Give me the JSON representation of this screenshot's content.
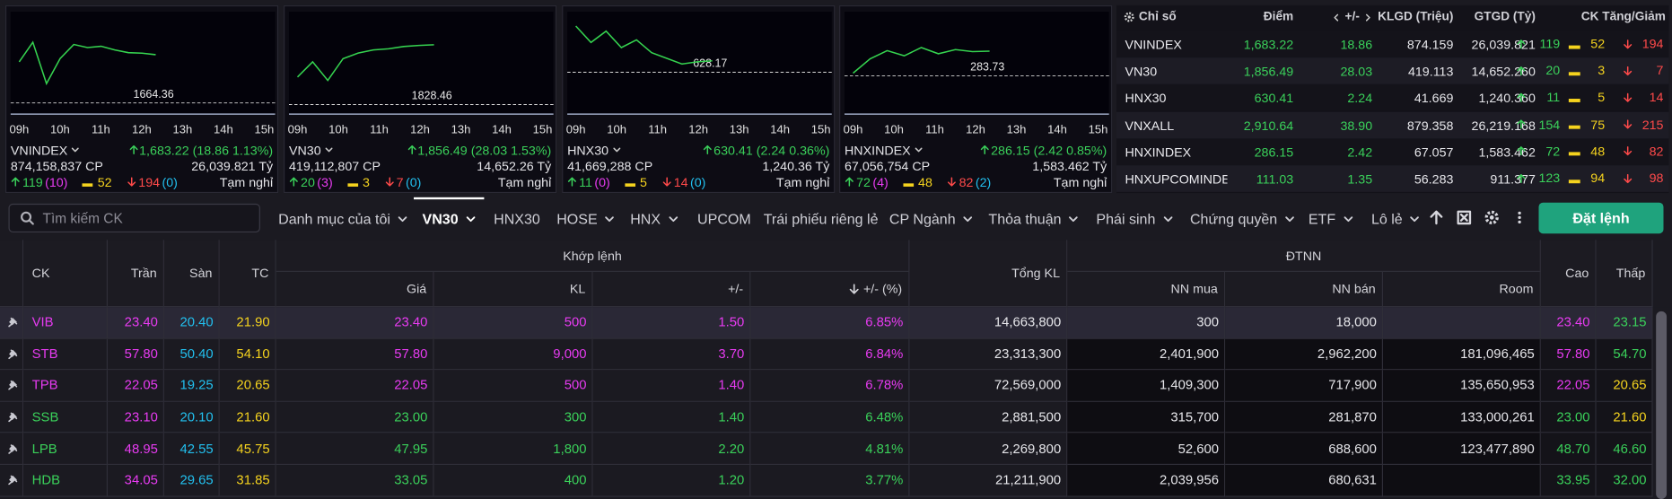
{
  "index_cards": [
    {
      "name": "VNINDEX",
      "change": "1,683.22 (18.86 1.13%)",
      "volume": "874,158,837 CP",
      "value": "26,039.821 Tỷ",
      "advances": "119",
      "ceiling": "(10)",
      "unchanged": "52",
      "declines": "194",
      "floor": "(0)",
      "status": "Tạm nghỉ",
      "chart": {
        "ylim": [
          1660,
          1700
        ],
        "reference": 1664.36,
        "xticks": [
          "09h",
          "10h",
          "11h",
          "12h",
          "13h",
          "14h",
          "15h"
        ],
        "values": [
          1680.4,
          1688.1,
          1671.9,
          1681.7,
          1687.2,
          1686.0,
          1686.5,
          1685.1,
          1684.0,
          1683.8,
          1683.22
        ]
      }
    },
    {
      "name": "VN30",
      "change": "1,856.49 (28.03 1.53%)",
      "volume": "419,112,807 CP",
      "value": "14,652.26 Tỷ",
      "advances": "20",
      "ceiling": "(3)",
      "unchanged": "3",
      "declines": "7",
      "floor": "(0)",
      "status": "Tạm nghỉ",
      "chart": {
        "ylim": [
          1824,
          1872
        ],
        "reference": 1828.46,
        "xticks": [
          "09h",
          "10h",
          "11h",
          "12h",
          "13h",
          "14h",
          "15h"
        ],
        "values": [
          1841.4,
          1848.5,
          1839.8,
          1850.0,
          1852.6,
          1854.1,
          1854.6,
          1855.7,
          1856.2,
          1856.49
        ]
      }
    },
    {
      "name": "HNX30",
      "change": "630.41 (2.24 0.36%)",
      "volume": "41,669,288 CP",
      "value": "1,240.36 Tỷ",
      "advances": "11",
      "ceiling": "(0)",
      "unchanged": "5",
      "declines": "14",
      "floor": "(0)",
      "status": "Tạm nghỉ",
      "chart": {
        "ylim": [
          620,
          640
        ],
        "reference": 628.17,
        "xticks": [
          "09h",
          "10h",
          "11h",
          "12h",
          "13h",
          "14h",
          "15h"
        ],
        "values": [
          637.2,
          634.0,
          636.2,
          633.0,
          634.5,
          632.0,
          630.9,
          629.8,
          630.2,
          630.41
        ]
      }
    },
    {
      "name": "HNXINDEX",
      "change": "286.15 (2.42 0.85%)",
      "volume": "67,056,754 CP",
      "value": "1,583.462 Tỷ",
      "advances": "72",
      "ceiling": "(4)",
      "unchanged": "48",
      "declines": "82",
      "floor": "(2)",
      "status": "Tạm nghỉ",
      "chart": {
        "ylim": [
          280,
          290
        ],
        "reference": 283.73,
        "xticks": [
          "09h",
          "10h",
          "11h",
          "12h",
          "13h",
          "14h",
          "15h"
        ],
        "values": [
          284.0,
          285.4,
          286.2,
          285.7,
          286.5,
          285.9,
          286.3,
          286.1,
          286.15
        ]
      }
    }
  ],
  "index_table": {
    "headers": [
      "Chỉ số",
      "Điểm",
      "+/-",
      "KLGD (Triệu)",
      "GTGD (Tỷ)",
      "CK Tăng/Giảm"
    ],
    "rows": [
      [
        "VNINDEX",
        "1,683.22",
        "18.86",
        "874.159",
        "26,039.821",
        "119",
        "52",
        "194"
      ],
      [
        "VN30",
        "1,856.49",
        "28.03",
        "419.113",
        "14,652.260",
        "20",
        "3",
        "7"
      ],
      [
        "HNX30",
        "630.41",
        "2.24",
        "41.669",
        "1,240.360",
        "11",
        "5",
        "14"
      ],
      [
        "VNXALL",
        "2,910.64",
        "38.90",
        "879.358",
        "26,219.168",
        "154",
        "75",
        "215"
      ],
      [
        "HNXINDEX",
        "286.15",
        "2.42",
        "67.057",
        "1,583.462",
        "72",
        "48",
        "82"
      ],
      [
        "HNXUPCOMINDEX",
        "111.03",
        "1.35",
        "56.283",
        "911.377",
        "123",
        "94",
        "98"
      ]
    ]
  },
  "toolbar": {
    "search_placeholder": "Tìm kiếm CK",
    "tabs": [
      {
        "label": "Danh mục của tôi",
        "dropdown": true
      },
      {
        "label": "VN30",
        "dropdown": true,
        "active": true
      },
      {
        "label": "HNX30"
      },
      {
        "label": "HOSE",
        "dropdown": true
      },
      {
        "label": "HNX",
        "dropdown": true
      },
      {
        "label": "UPCOM"
      },
      {
        "label": "Trái phiếu riêng lẻ"
      },
      {
        "label": "CP Ngành",
        "dropdown": true
      },
      {
        "label": "Thỏa thuận",
        "dropdown": true
      },
      {
        "label": "Phái sinh",
        "dropdown": true
      },
      {
        "label": "Chứng quyền",
        "dropdown": true
      },
      {
        "label": "ETF",
        "dropdown": true
      },
      {
        "label": "Lô lẻ",
        "dropdown": true
      }
    ],
    "order_button": "Đặt lệnh"
  },
  "board": {
    "headers": {
      "ck": "CK",
      "ceiling": "Trần",
      "floor": "Sàn",
      "ref": "TC",
      "match": "Khớp lệnh",
      "price": "Giá",
      "volume": "KL",
      "change": "+/-",
      "change_pct": "+/- (%)",
      "total_volume": "Tổng KL",
      "foreign": "ĐTNN",
      "foreign_buy": "NN mua",
      "foreign_sell": "NN bán",
      "room": "Room",
      "high": "Cao",
      "low": "Thấp"
    },
    "rows": [
      {
        "ck": "VIB",
        "ceiling": "23.40",
        "floor": "20.40",
        "ref": "21.90",
        "price": "23.40",
        "volume": "500",
        "change": "1.50",
        "change_pct": "6.85%",
        "total_volume": "14,663,800",
        "foreign_buy": "300",
        "foreign_sell": "18,000",
        "high": "23.40",
        "low": "23.15"
      },
      {
        "ck": "STB",
        "ceiling": "57.80",
        "floor": "50.40",
        "ref": "54.10",
        "price": "57.80",
        "volume": "9,000",
        "change": "3.70",
        "change_pct": "6.84%",
        "total_volume": "23,313,300",
        "foreign_buy": "2,401,900",
        "foreign_sell": "2,962,200",
        "room": "181,096,465",
        "high": "57.80",
        "low": "54.70"
      },
      {
        "ck": "TPB",
        "ceiling": "22.05",
        "floor": "19.25",
        "ref": "20.65",
        "price": "22.05",
        "volume": "500",
        "change": "1.40",
        "change_pct": "6.78%",
        "total_volume": "72,569,000",
        "foreign_buy": "1,409,300",
        "foreign_sell": "717,900",
        "room": "135,650,953",
        "high": "22.05",
        "low": "20.65"
      },
      {
        "ck": "SSB",
        "ceiling": "23.10",
        "floor": "20.10",
        "ref": "21.60",
        "price": "23.00",
        "volume": "300",
        "change": "1.40",
        "change_pct": "6.48%",
        "total_volume": "2,881,500",
        "foreign_buy": "315,700",
        "foreign_sell": "281,870",
        "room": "133,000,261",
        "high": "23.00",
        "low": "21.60"
      },
      {
        "ck": "LPB",
        "ceiling": "48.95",
        "floor": "42.55",
        "ref": "45.75",
        "price": "47.95",
        "volume": "1,800",
        "change": "2.20",
        "change_pct": "4.81%",
        "total_volume": "2,269,800",
        "foreign_buy": "52,600",
        "foreign_sell": "688,600",
        "room": "123,477,890",
        "high": "48.70",
        "low": "46.60"
      },
      {
        "ck": "HDB",
        "ceiling": "34.05",
        "floor": "29.65",
        "ref": "31.85",
        "price": "33.05",
        "volume": "400",
        "change": "1.20",
        "change_pct": "3.77%",
        "total_volume": "21,211,900",
        "foreign_buy": "2,039,956",
        "foreign_sell": "680,631",
        "high": "33.95",
        "low": "32.00"
      }
    ]
  }
}
